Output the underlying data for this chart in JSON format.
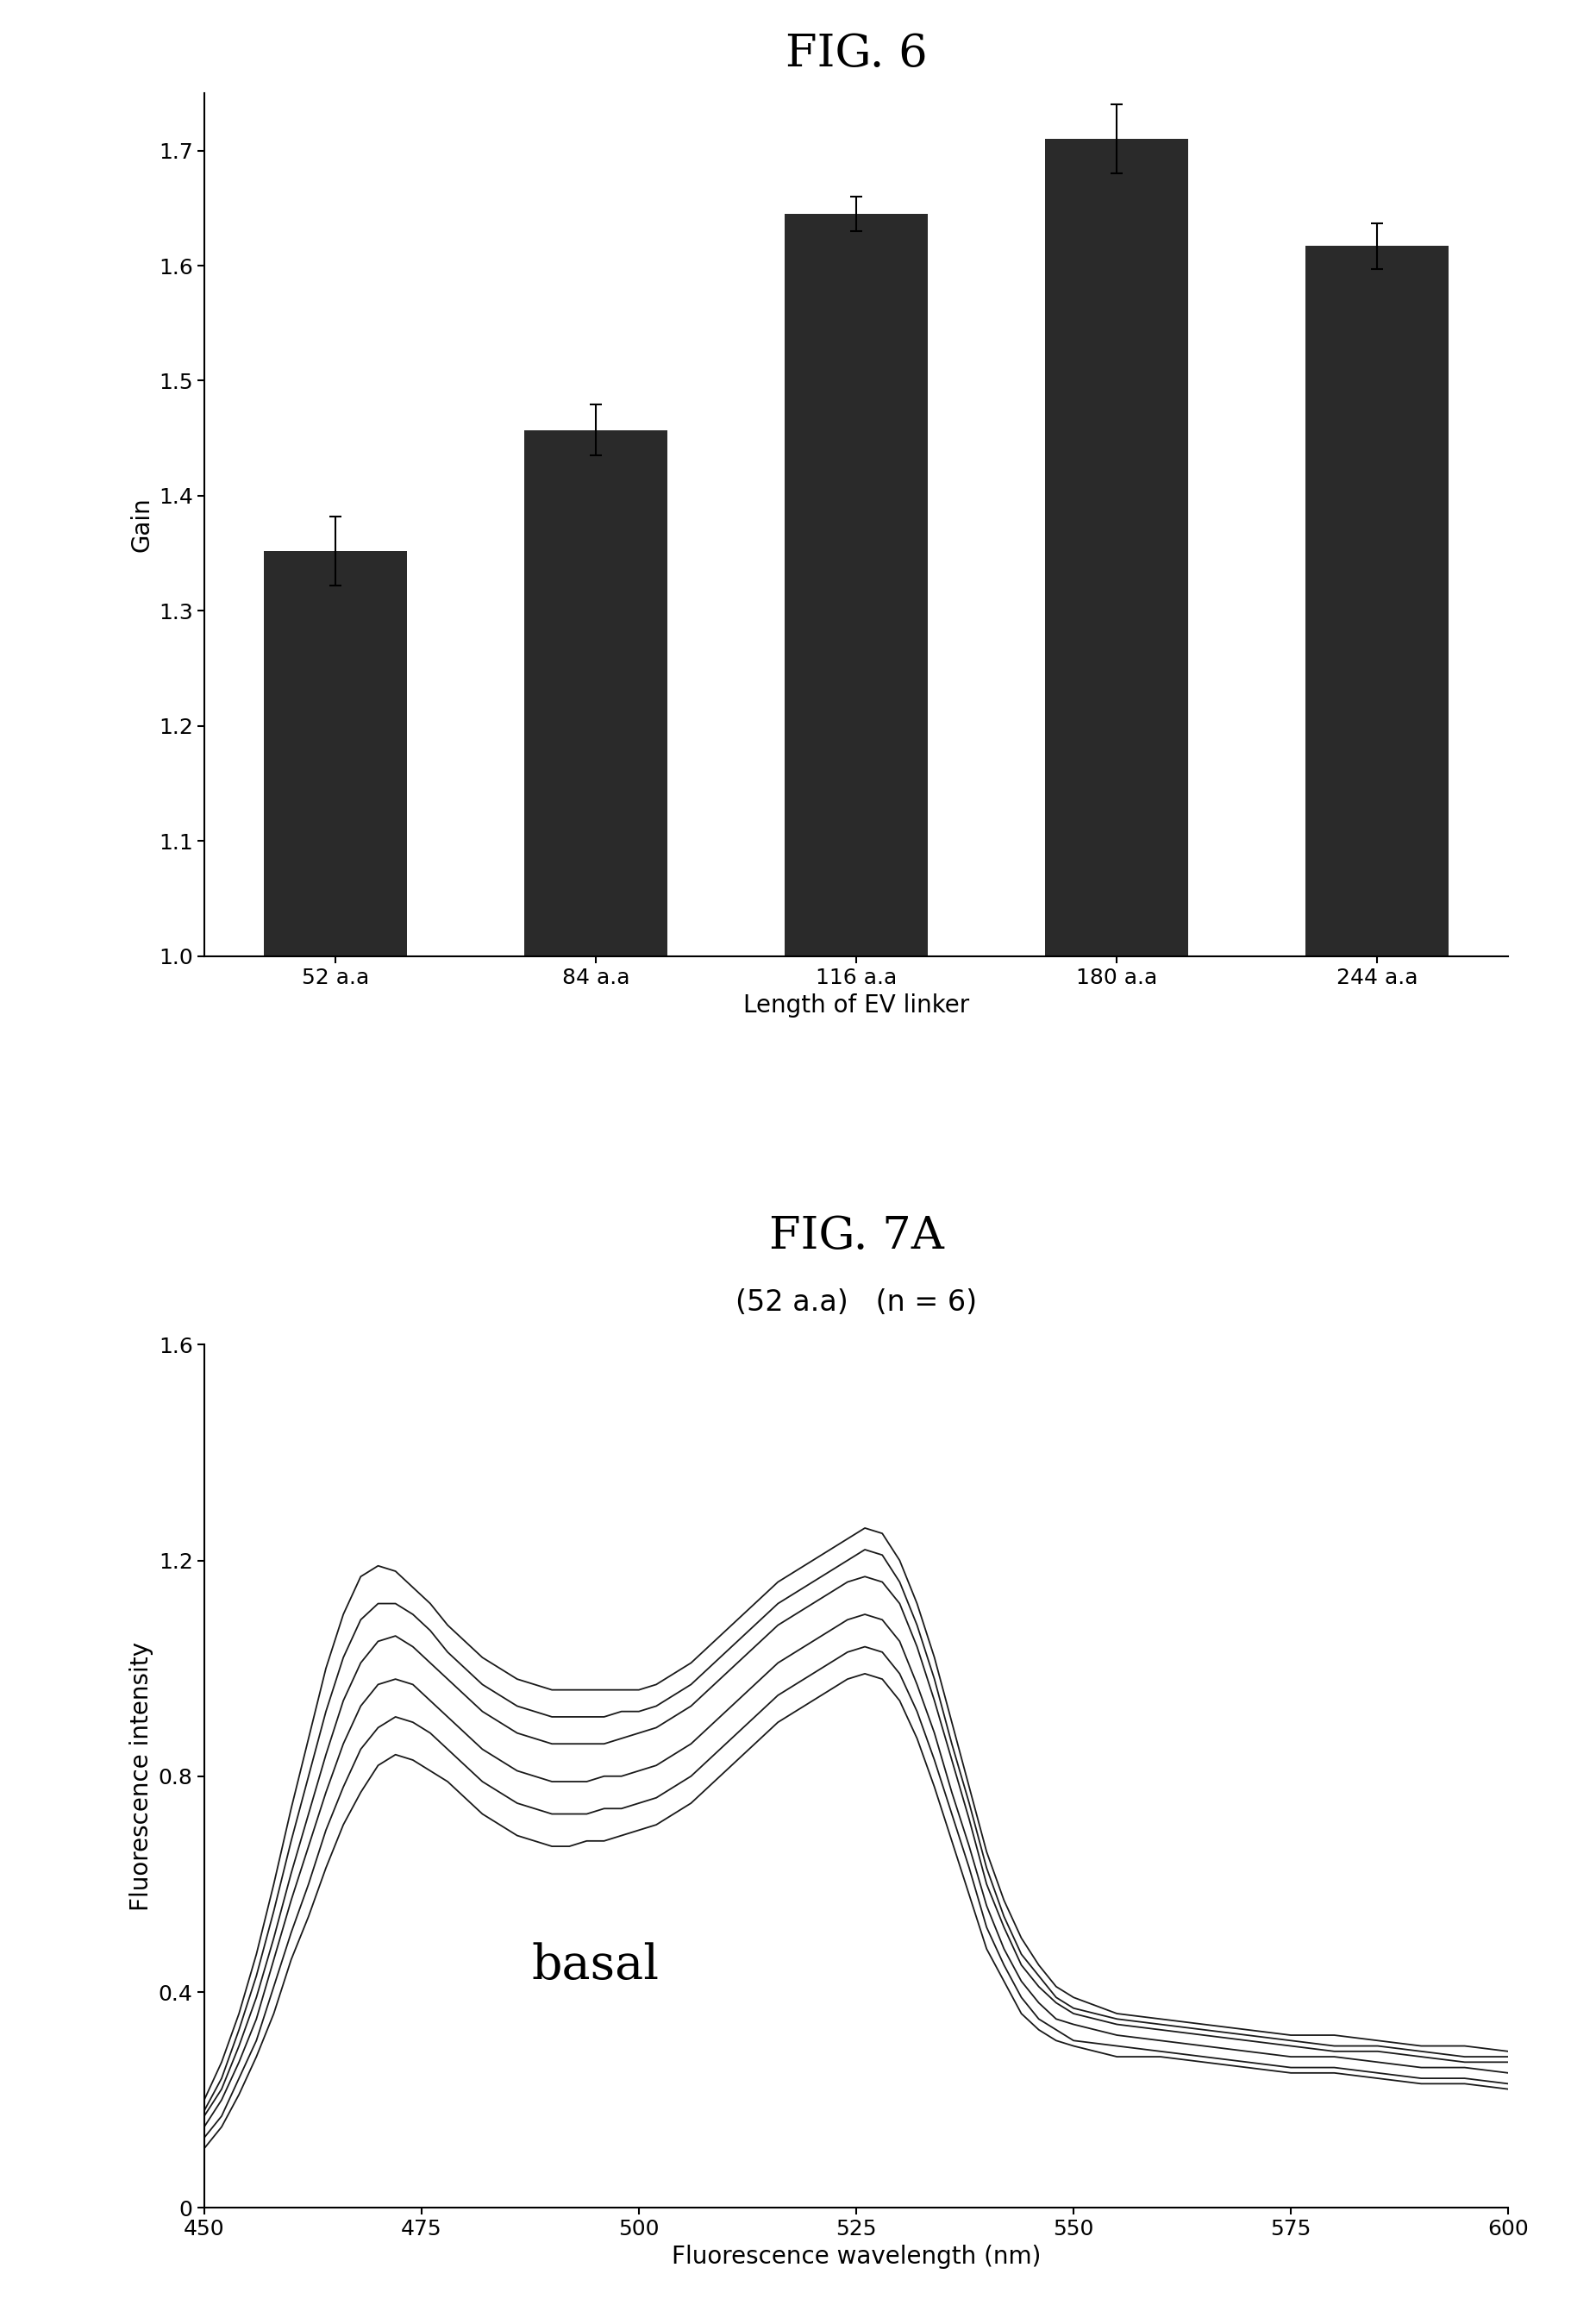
{
  "fig6_title": "FIG. 6",
  "fig7a_title": "FIG. 7A",
  "fig7a_subtitle": "(52 a.a)   (n = 6)",
  "bar_categories": [
    "52 a.a",
    "84 a.a",
    "116 a.a",
    "180 a.a",
    "244 a.a"
  ],
  "bar_values": [
    1.352,
    1.457,
    1.645,
    1.71,
    1.617
  ],
  "bar_errors": [
    0.03,
    0.022,
    0.015,
    0.03,
    0.02
  ],
  "bar_color": "#2a2a2a",
  "bar_ylabel": "Gain",
  "bar_xlabel": "Length of EV linker",
  "bar_ylim": [
    1.0,
    1.75
  ],
  "bar_yticks": [
    1.0,
    1.1,
    1.2,
    1.3,
    1.4,
    1.5,
    1.6,
    1.7
  ],
  "line_xlabel": "Fluorescence wavelength (nm)",
  "line_ylabel": "Fluorescence intensity",
  "line_xlim": [
    450,
    600
  ],
  "line_ylim": [
    0,
    1.6
  ],
  "line_xticks": [
    450,
    475,
    500,
    525,
    550,
    575,
    600
  ],
  "line_yticks": [
    0,
    0.4,
    0.8,
    1.2,
    1.6
  ],
  "basal_label": "basal",
  "line_color": "#1a1a1a",
  "curves": [
    {
      "x": [
        450,
        452,
        454,
        456,
        458,
        460,
        462,
        464,
        466,
        468,
        470,
        472,
        474,
        476,
        478,
        480,
        482,
        484,
        486,
        488,
        490,
        492,
        494,
        496,
        498,
        500,
        502,
        504,
        506,
        508,
        510,
        512,
        514,
        516,
        518,
        520,
        522,
        524,
        526,
        528,
        530,
        532,
        534,
        536,
        538,
        540,
        542,
        544,
        546,
        548,
        550,
        555,
        560,
        565,
        570,
        575,
        580,
        585,
        590,
        595,
        600
      ],
      "y": [
        0.2,
        0.27,
        0.36,
        0.47,
        0.6,
        0.74,
        0.87,
        1.0,
        1.1,
        1.17,
        1.19,
        1.18,
        1.15,
        1.12,
        1.08,
        1.05,
        1.02,
        1.0,
        0.98,
        0.97,
        0.96,
        0.96,
        0.96,
        0.96,
        0.96,
        0.96,
        0.97,
        0.99,
        1.01,
        1.04,
        1.07,
        1.1,
        1.13,
        1.16,
        1.18,
        1.2,
        1.22,
        1.24,
        1.26,
        1.25,
        1.2,
        1.12,
        1.02,
        0.9,
        0.78,
        0.66,
        0.57,
        0.5,
        0.45,
        0.41,
        0.39,
        0.36,
        0.35,
        0.34,
        0.33,
        0.32,
        0.32,
        0.31,
        0.3,
        0.3,
        0.29
      ]
    },
    {
      "x": [
        450,
        452,
        454,
        456,
        458,
        460,
        462,
        464,
        466,
        468,
        470,
        472,
        474,
        476,
        478,
        480,
        482,
        484,
        486,
        488,
        490,
        492,
        494,
        496,
        498,
        500,
        502,
        504,
        506,
        508,
        510,
        512,
        514,
        516,
        518,
        520,
        522,
        524,
        526,
        528,
        530,
        532,
        534,
        536,
        538,
        540,
        542,
        544,
        546,
        548,
        550,
        555,
        560,
        565,
        570,
        575,
        580,
        585,
        590,
        595,
        600
      ],
      "y": [
        0.18,
        0.24,
        0.33,
        0.43,
        0.55,
        0.68,
        0.8,
        0.92,
        1.02,
        1.09,
        1.12,
        1.12,
        1.1,
        1.07,
        1.03,
        1.0,
        0.97,
        0.95,
        0.93,
        0.92,
        0.91,
        0.91,
        0.91,
        0.91,
        0.92,
        0.92,
        0.93,
        0.95,
        0.97,
        1.0,
        1.03,
        1.06,
        1.09,
        1.12,
        1.14,
        1.16,
        1.18,
        1.2,
        1.22,
        1.21,
        1.16,
        1.08,
        0.98,
        0.86,
        0.75,
        0.63,
        0.54,
        0.47,
        0.43,
        0.39,
        0.37,
        0.35,
        0.34,
        0.33,
        0.32,
        0.31,
        0.3,
        0.3,
        0.29,
        0.28,
        0.28
      ]
    },
    {
      "x": [
        450,
        452,
        454,
        456,
        458,
        460,
        462,
        464,
        466,
        468,
        470,
        472,
        474,
        476,
        478,
        480,
        482,
        484,
        486,
        488,
        490,
        492,
        494,
        496,
        498,
        500,
        502,
        504,
        506,
        508,
        510,
        512,
        514,
        516,
        518,
        520,
        522,
        524,
        526,
        528,
        530,
        532,
        534,
        536,
        538,
        540,
        542,
        544,
        546,
        548,
        550,
        555,
        560,
        565,
        570,
        575,
        580,
        585,
        590,
        595,
        600
      ],
      "y": [
        0.17,
        0.22,
        0.3,
        0.39,
        0.5,
        0.62,
        0.73,
        0.84,
        0.94,
        1.01,
        1.05,
        1.06,
        1.04,
        1.01,
        0.98,
        0.95,
        0.92,
        0.9,
        0.88,
        0.87,
        0.86,
        0.86,
        0.86,
        0.86,
        0.87,
        0.88,
        0.89,
        0.91,
        0.93,
        0.96,
        0.99,
        1.02,
        1.05,
        1.08,
        1.1,
        1.12,
        1.14,
        1.16,
        1.17,
        1.16,
        1.12,
        1.04,
        0.94,
        0.83,
        0.72,
        0.6,
        0.52,
        0.45,
        0.41,
        0.38,
        0.36,
        0.34,
        0.33,
        0.32,
        0.31,
        0.3,
        0.29,
        0.29,
        0.28,
        0.27,
        0.27
      ]
    },
    {
      "x": [
        450,
        452,
        454,
        456,
        458,
        460,
        462,
        464,
        466,
        468,
        470,
        472,
        474,
        476,
        478,
        480,
        482,
        484,
        486,
        488,
        490,
        492,
        494,
        496,
        498,
        500,
        502,
        504,
        506,
        508,
        510,
        512,
        514,
        516,
        518,
        520,
        522,
        524,
        526,
        528,
        530,
        532,
        534,
        536,
        538,
        540,
        542,
        544,
        546,
        548,
        550,
        555,
        560,
        565,
        570,
        575,
        580,
        585,
        590,
        595,
        600
      ],
      "y": [
        0.15,
        0.2,
        0.27,
        0.35,
        0.46,
        0.57,
        0.67,
        0.77,
        0.86,
        0.93,
        0.97,
        0.98,
        0.97,
        0.94,
        0.91,
        0.88,
        0.85,
        0.83,
        0.81,
        0.8,
        0.79,
        0.79,
        0.79,
        0.8,
        0.8,
        0.81,
        0.82,
        0.84,
        0.86,
        0.89,
        0.92,
        0.95,
        0.98,
        1.01,
        1.03,
        1.05,
        1.07,
        1.09,
        1.1,
        1.09,
        1.05,
        0.97,
        0.88,
        0.77,
        0.67,
        0.56,
        0.48,
        0.42,
        0.38,
        0.35,
        0.34,
        0.32,
        0.31,
        0.3,
        0.29,
        0.28,
        0.28,
        0.27,
        0.26,
        0.26,
        0.25
      ]
    },
    {
      "x": [
        450,
        452,
        454,
        456,
        458,
        460,
        462,
        464,
        466,
        468,
        470,
        472,
        474,
        476,
        478,
        480,
        482,
        484,
        486,
        488,
        490,
        492,
        494,
        496,
        498,
        500,
        502,
        504,
        506,
        508,
        510,
        512,
        514,
        516,
        518,
        520,
        522,
        524,
        526,
        528,
        530,
        532,
        534,
        536,
        538,
        540,
        542,
        544,
        546,
        548,
        550,
        555,
        560,
        565,
        570,
        575,
        580,
        585,
        590,
        595,
        600
      ],
      "y": [
        0.13,
        0.17,
        0.24,
        0.31,
        0.41,
        0.51,
        0.6,
        0.7,
        0.78,
        0.85,
        0.89,
        0.91,
        0.9,
        0.88,
        0.85,
        0.82,
        0.79,
        0.77,
        0.75,
        0.74,
        0.73,
        0.73,
        0.73,
        0.74,
        0.74,
        0.75,
        0.76,
        0.78,
        0.8,
        0.83,
        0.86,
        0.89,
        0.92,
        0.95,
        0.97,
        0.99,
        1.01,
        1.03,
        1.04,
        1.03,
        0.99,
        0.92,
        0.83,
        0.73,
        0.63,
        0.52,
        0.45,
        0.39,
        0.35,
        0.33,
        0.31,
        0.3,
        0.29,
        0.28,
        0.27,
        0.26,
        0.26,
        0.25,
        0.24,
        0.24,
        0.23
      ]
    },
    {
      "x": [
        450,
        452,
        454,
        456,
        458,
        460,
        462,
        464,
        466,
        468,
        470,
        472,
        474,
        476,
        478,
        480,
        482,
        484,
        486,
        488,
        490,
        492,
        494,
        496,
        498,
        500,
        502,
        504,
        506,
        508,
        510,
        512,
        514,
        516,
        518,
        520,
        522,
        524,
        526,
        528,
        530,
        532,
        534,
        536,
        538,
        540,
        542,
        544,
        546,
        548,
        550,
        555,
        560,
        565,
        570,
        575,
        580,
        585,
        590,
        595,
        600
      ],
      "y": [
        0.11,
        0.15,
        0.21,
        0.28,
        0.36,
        0.46,
        0.54,
        0.63,
        0.71,
        0.77,
        0.82,
        0.84,
        0.83,
        0.81,
        0.79,
        0.76,
        0.73,
        0.71,
        0.69,
        0.68,
        0.67,
        0.67,
        0.68,
        0.68,
        0.69,
        0.7,
        0.71,
        0.73,
        0.75,
        0.78,
        0.81,
        0.84,
        0.87,
        0.9,
        0.92,
        0.94,
        0.96,
        0.98,
        0.99,
        0.98,
        0.94,
        0.87,
        0.78,
        0.68,
        0.58,
        0.48,
        0.42,
        0.36,
        0.33,
        0.31,
        0.3,
        0.28,
        0.28,
        0.27,
        0.26,
        0.25,
        0.25,
        0.24,
        0.23,
        0.23,
        0.22
      ]
    }
  ],
  "background_color": "#ffffff",
  "fig6_title_fontsize": 38,
  "fig7a_title_fontsize": 38,
  "axis_label_fontsize": 20,
  "tick_fontsize": 18,
  "subtitle_fontsize": 24,
  "basal_fontsize": 40
}
